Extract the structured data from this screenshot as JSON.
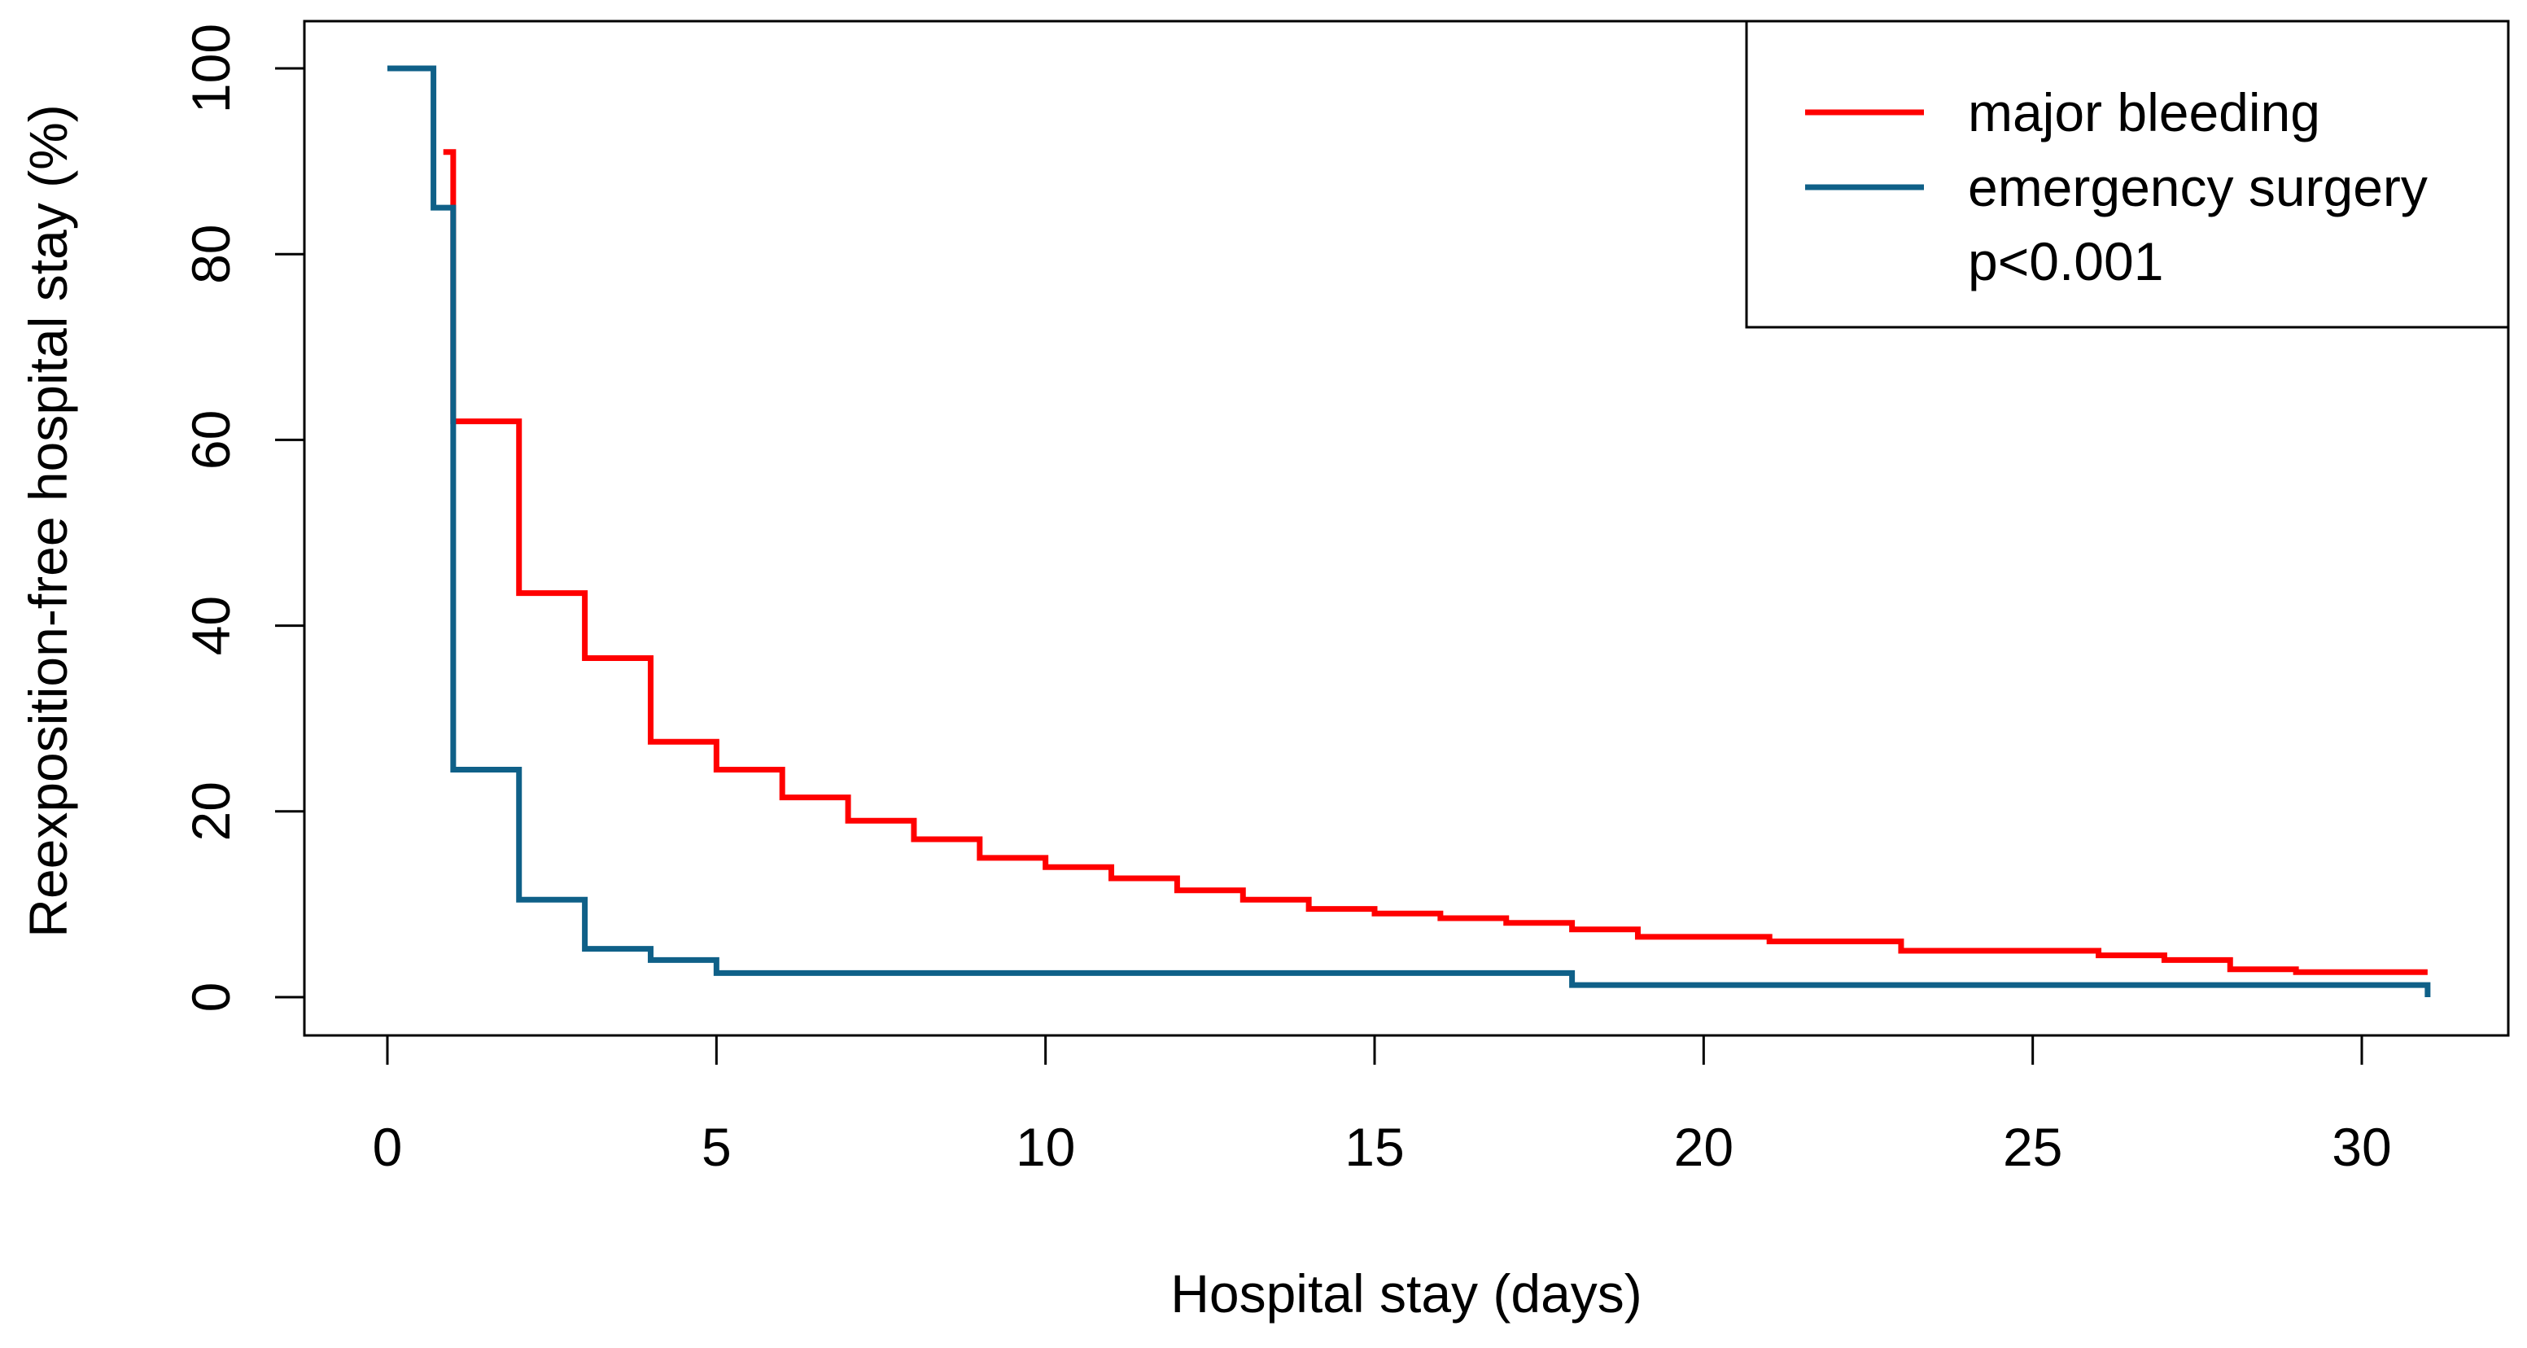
{
  "chart_data": {
    "type": "line",
    "step": true,
    "title": "",
    "xlabel": "Hospital stay (days)",
    "ylabel": "Reexposition-free hospital stay (%)",
    "xlim": [
      0,
      31
    ],
    "ylim": [
      0,
      100
    ],
    "x_ticks": [
      0,
      5,
      10,
      15,
      20,
      25,
      30
    ],
    "y_ticks": [
      0,
      20,
      40,
      60,
      80,
      100
    ],
    "x_tick_labels": [
      "0",
      "5",
      "10",
      "15",
      "20",
      "25",
      "30"
    ],
    "y_tick_labels": [
      "0",
      "20",
      "40",
      "60",
      "80",
      "100"
    ],
    "legend_position": "top-right",
    "annotation": "p<0.001",
    "series": [
      {
        "name": "major bleeding",
        "color": "#ff0000",
        "x": [
          0.85,
          1,
          2,
          3,
          4,
          5,
          6,
          7,
          8,
          9,
          10,
          11,
          12,
          13,
          14,
          15,
          16,
          17,
          18,
          19,
          20,
          21,
          22,
          23,
          24,
          25,
          26,
          27,
          28,
          29,
          30,
          31
        ],
        "y": [
          91,
          62,
          43.5,
          36.5,
          27.5,
          24.5,
          21.5,
          19,
          17,
          15,
          14,
          12.8,
          11.5,
          10.5,
          9.5,
          9,
          8.5,
          8,
          7.3,
          6.5,
          6.5,
          6,
          6,
          5,
          5,
          5,
          4.5,
          4,
          3,
          2.7,
          2.7,
          2.7
        ]
      },
      {
        "name": "emergency surgery",
        "color": "#0f6088",
        "x": [
          0,
          0.7,
          1,
          2,
          3,
          4,
          5,
          18,
          31
        ],
        "y": [
          100,
          85,
          24.5,
          10.5,
          5.2,
          4,
          2.6,
          1.3,
          0
        ]
      }
    ]
  }
}
